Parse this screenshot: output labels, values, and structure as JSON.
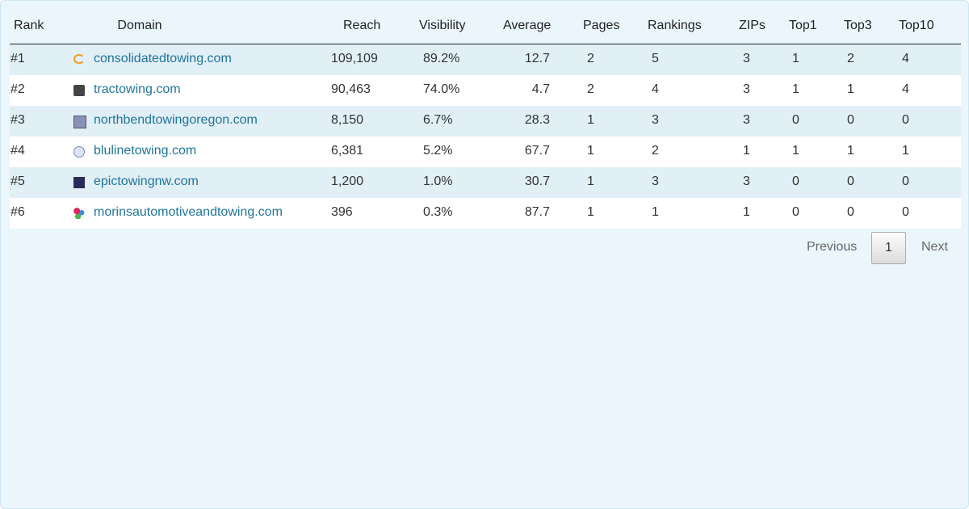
{
  "table": {
    "headers": [
      "Rank",
      "Domain",
      "Reach",
      "Visibility",
      "Average",
      "Pages",
      "Rankings",
      "ZIPs",
      "Top1",
      "Top3",
      "Top10"
    ],
    "rows": [
      [
        "#1",
        "consolidatedtowing.com",
        "109,109",
        "89.2%",
        "12.7",
        "2",
        "5",
        "3",
        "1",
        "2",
        "4"
      ],
      [
        "#2",
        "tractowing.com",
        "90,463",
        "74.0%",
        "4.7",
        "2",
        "4",
        "3",
        "1",
        "1",
        "4"
      ],
      [
        "#3",
        "northbendtowingoregon.com",
        "8,150",
        "6.7%",
        "28.3",
        "1",
        "3",
        "3",
        "0",
        "0",
        "0"
      ],
      [
        "#4",
        "blulinetowing.com",
        "6,381",
        "5.2%",
        "67.7",
        "1",
        "2",
        "1",
        "1",
        "1",
        "1"
      ],
      [
        "#5",
        "epictowingnw.com",
        "1,200",
        "1.0%",
        "30.7",
        "1",
        "3",
        "3",
        "0",
        "0",
        "0"
      ],
      [
        "#6",
        "morinsautomotiveandtowing.com",
        "396",
        "0.3%",
        "87.7",
        "1",
        "1",
        "1",
        "0",
        "0",
        "0"
      ]
    ]
  },
  "pagination": {
    "previous": "Previous",
    "current": "1",
    "next": "Next"
  }
}
